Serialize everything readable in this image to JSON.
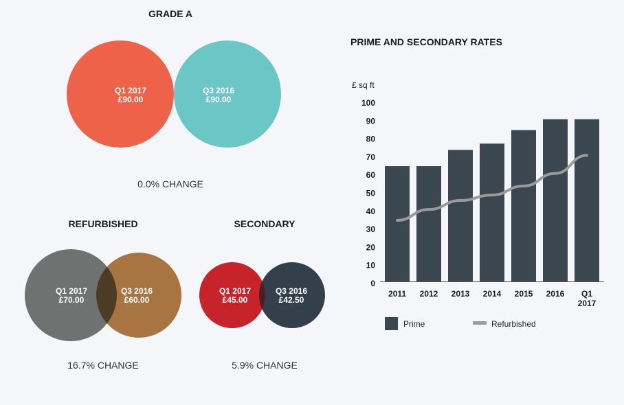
{
  "venns": [
    {
      "id": "grade-a",
      "title": "GRADE A",
      "change": "0.0% CHANGE",
      "left": {
        "period": "Q1 2017",
        "value": "£90.00",
        "color": "#ee6249"
      },
      "right": {
        "period": "Q3 2016",
        "value": "£90.00",
        "color": "#6bc7c5"
      },
      "overlap_color": "#8f574b"
    },
    {
      "id": "refurbished",
      "title": "REFURBISHED",
      "change": "16.7% CHANGE",
      "left": {
        "period": "Q1 2017",
        "value": "£70.00",
        "color": "#6e7271"
      },
      "right": {
        "period": "Q3 2016",
        "value": "£60.00",
        "color": "#a87542"
      },
      "overlap_color": "#4d3c25"
    },
    {
      "id": "secondary",
      "title": "SECONDARY",
      "change": "5.9% CHANGE",
      "left": {
        "period": "Q1 2017",
        "value": "£45.00",
        "color": "#c6232a"
      },
      "right": {
        "period": "Q3 2016",
        "value": "£42.50",
        "color": "#33404c"
      },
      "overlap_color": "#4b1f26"
    }
  ],
  "chart_data": {
    "type": "bar",
    "title": "PRIME AND SECONDARY RATES",
    "ylabel": "£ sq ft",
    "xlabel": "",
    "ylim": [
      0,
      100
    ],
    "yticks": [
      0,
      10,
      20,
      30,
      40,
      50,
      60,
      70,
      80,
      90,
      100
    ],
    "categories": [
      "2011",
      "2012",
      "2013",
      "2014",
      "2015",
      "2016",
      "Q1 2017"
    ],
    "category_lines": [
      [
        "2011"
      ],
      [
        "2012"
      ],
      [
        "2013"
      ],
      [
        "2014"
      ],
      [
        "2015"
      ],
      [
        "2016"
      ],
      [
        "Q1",
        "2017"
      ]
    ],
    "series": [
      {
        "name": "Prime",
        "kind": "bar",
        "color": "#3a4750",
        "values": [
          65,
          65,
          74,
          77.5,
          85,
          91,
          91
        ]
      },
      {
        "name": "Refurbished",
        "kind": "line",
        "color": "#9a9a9a",
        "values": [
          35,
          41,
          46,
          49,
          54,
          61,
          71
        ]
      }
    ],
    "legend": [
      "Prime",
      "Refurbished"
    ],
    "legend_position": "bottom-left",
    "grid": false
  }
}
